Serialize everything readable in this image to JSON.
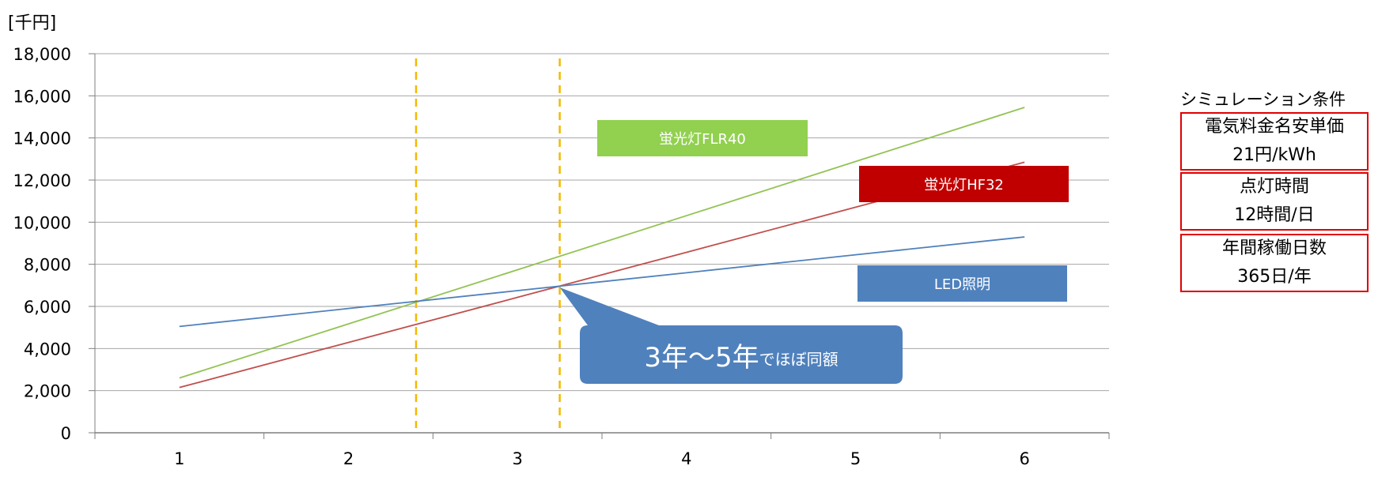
{
  "chart_data": {
    "type": "line",
    "unit_label": "[千円]",
    "x": [
      1,
      2,
      3,
      4,
      5,
      6
    ],
    "ylim": [
      0,
      18000
    ],
    "yticks": [
      "0",
      "2,000",
      "4,000",
      "6,000",
      "8,000",
      "10,000",
      "12,000",
      "14,000",
      "16,000",
      "18,000"
    ],
    "xticks": [
      "1",
      "2",
      "3",
      "4",
      "5",
      "6"
    ],
    "grid": true,
    "series": [
      {
        "name": "蛍光灯FLR40",
        "color": "#92c353",
        "values": [
          2600,
          5170,
          7740,
          10310,
          12880,
          15450
        ]
      },
      {
        "name": "蛍光灯HF32",
        "color": "#c0504d",
        "values": [
          2150,
          4290,
          6430,
          8570,
          10710,
          12850
        ]
      },
      {
        "name": "LED照明",
        "color": "#4f81bd",
        "values": [
          5050,
          5900,
          6750,
          7600,
          8450,
          9300
        ]
      }
    ],
    "reference_lines_x": [
      2.4,
      3.25
    ],
    "reference_line_color": "#f5b800",
    "legend_boxes": [
      {
        "label": "蛍光灯FLR40",
        "bg": "#92d050"
      },
      {
        "label": "蛍光灯HF32",
        "bg": "#c00000"
      },
      {
        "label": "LED照明",
        "bg": "#4f81bd"
      }
    ],
    "callout": {
      "big": "3年～5年",
      "small": "でほぼ同額",
      "bg": "#4f81bd",
      "anchor": {
        "x": 3.25,
        "y": 6900
      }
    }
  },
  "conditions": {
    "title": "シミュレーション条件",
    "items": [
      {
        "line1": "電気料金名安単価",
        "line2": "21円/kWh"
      },
      {
        "line1": "点灯時間",
        "line2": "12時間/日"
      },
      {
        "line1": "年間稼働日数",
        "line2": "365日/年"
      }
    ]
  }
}
